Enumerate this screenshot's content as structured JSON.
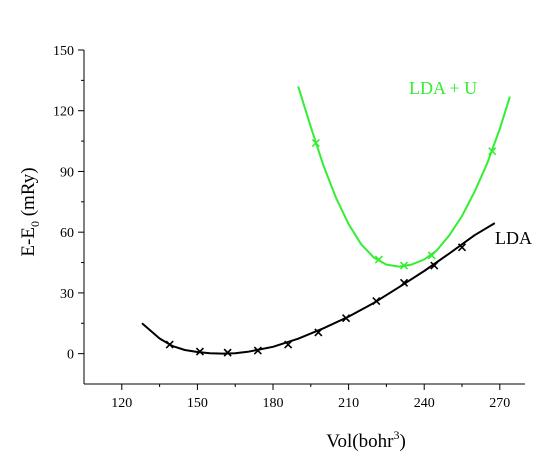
{
  "chart_data": {
    "type": "line",
    "title": "",
    "xlabel": {
      "main": "Vol(bohr",
      "sup": "3",
      "tail": ")"
    },
    "ylabel": {
      "main": "E-E",
      "sub": "0",
      "tail": " (mRy)"
    },
    "xlim": [
      105,
      280
    ],
    "ylim": [
      -15,
      150
    ],
    "xticks": [
      120,
      150,
      180,
      210,
      240,
      270
    ],
    "yticks": [
      0,
      30,
      60,
      90,
      120,
      150
    ],
    "grid": false,
    "legend": "none",
    "series": [
      {
        "name": "LDA",
        "color": "#000000",
        "markers": [
          [
            139,
            4.5
          ],
          [
            151,
            1
          ],
          [
            162,
            0.5
          ],
          [
            174,
            1.5
          ],
          [
            186,
            4.5
          ],
          [
            198,
            10.5
          ],
          [
            209,
            17.5
          ],
          [
            221,
            26
          ],
          [
            232,
            35
          ],
          [
            244,
            43.5
          ],
          [
            255,
            52.5
          ]
        ],
        "fit": [
          [
            128,
            15
          ],
          [
            135,
            7.5
          ],
          [
            140,
            3.8
          ],
          [
            145,
            1.8
          ],
          [
            150,
            0.8
          ],
          [
            155,
            0.2
          ],
          [
            160,
            0
          ],
          [
            165,
            0.2
          ],
          [
            170,
            0.9
          ],
          [
            180,
            3.4
          ],
          [
            190,
            7.4
          ],
          [
            200,
            12.5
          ],
          [
            210,
            18.3
          ],
          [
            220,
            25
          ],
          [
            230,
            32.8
          ],
          [
            240,
            40.8
          ],
          [
            250,
            49.5
          ],
          [
            260,
            58.5
          ],
          [
            268,
            64.5
          ]
        ]
      },
      {
        "name": "LDA + U",
        "color": "#33ee33",
        "markers": [
          [
            197,
            104
          ],
          [
            222,
            46.5
          ],
          [
            232,
            43.5
          ],
          [
            243,
            48.5
          ],
          [
            267,
            100
          ]
        ],
        "fit": [
          [
            190,
            132
          ],
          [
            195,
            112
          ],
          [
            200,
            93
          ],
          [
            205,
            77
          ],
          [
            210,
            64
          ],
          [
            215,
            54
          ],
          [
            220,
            47.5
          ],
          [
            225,
            44
          ],
          [
            230,
            43
          ],
          [
            235,
            44
          ],
          [
            240,
            46.5
          ],
          [
            245,
            51
          ],
          [
            250,
            58.5
          ],
          [
            255,
            68
          ],
          [
            260,
            80
          ],
          [
            265,
            94
          ],
          [
            270,
            111
          ],
          [
            274,
            127
          ]
        ]
      }
    ]
  }
}
